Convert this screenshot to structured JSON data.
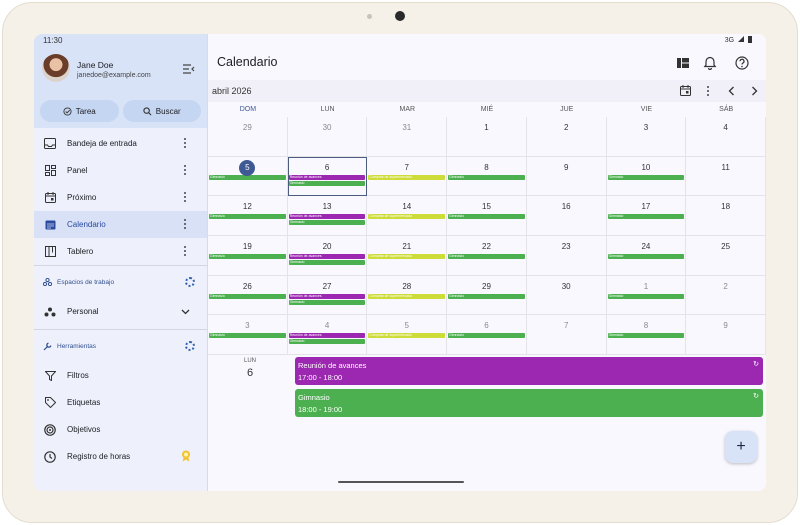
{
  "status": {
    "time": "11:30",
    "signal": "3G"
  },
  "user": {
    "name": "Jane Doe",
    "email": "janedoe@example.com"
  },
  "actions": {
    "task_label": "Tarea",
    "search_label": "Buscar"
  },
  "sidebar": {
    "items": [
      {
        "label": "Bandeja de entrada",
        "icon": "inbox-icon"
      },
      {
        "label": "Panel",
        "icon": "dashboard-icon"
      },
      {
        "label": "Próximo",
        "icon": "calendar-upcoming-icon"
      },
      {
        "label": "Calendario",
        "icon": "calendar-icon",
        "active": true
      },
      {
        "label": "Tablero",
        "icon": "board-icon"
      }
    ],
    "workspaces_title": "Espacios de trabajo",
    "workspace_selected": "Personal",
    "tools_title": "Herramientas",
    "tools": [
      {
        "label": "Filtros",
        "icon": "filter-icon"
      },
      {
        "label": "Etiquetas",
        "icon": "label-icon"
      },
      {
        "label": "Objetivos",
        "icon": "target-icon"
      },
      {
        "label": "Registro de horas",
        "icon": "clock-icon"
      }
    ]
  },
  "header": {
    "title": "Calendario"
  },
  "calendar": {
    "month_label": "abril 2026",
    "weekdays": [
      "DOM",
      "LUN",
      "MAR",
      "MIÉ",
      "JUE",
      "VIE",
      "SÁB"
    ],
    "weeks": [
      [
        "29",
        "30",
        "31",
        "1",
        "2",
        "3",
        "4"
      ],
      [
        "5",
        "6",
        "7",
        "8",
        "9",
        "10",
        "11"
      ],
      [
        "12",
        "13",
        "14",
        "15",
        "16",
        "17",
        "18"
      ],
      [
        "19",
        "20",
        "21",
        "22",
        "23",
        "24",
        "25"
      ],
      [
        "26",
        "27",
        "28",
        "29",
        "30",
        "1",
        "2"
      ],
      [
        "3",
        "4",
        "5",
        "6",
        "7",
        "8",
        "9"
      ]
    ],
    "event_labels": {
      "meeting": "Reunión de avances",
      "gym": "Gimnasio",
      "yellow": "Compras de supermercado"
    },
    "colors": {
      "meeting": "#9c27b0",
      "gym": "#4caf50",
      "yellow": "#cddc39",
      "today": "#3f5994"
    }
  },
  "agenda": {
    "dow": "LUN",
    "day": "6",
    "events": [
      {
        "title": "Reunión de avances",
        "time": "17:00 - 18:00",
        "color": "#9c27b0"
      },
      {
        "title": "Gimnasio",
        "time": "18:00 - 19:00",
        "color": "#4caf50"
      }
    ]
  },
  "fab_label": "+"
}
